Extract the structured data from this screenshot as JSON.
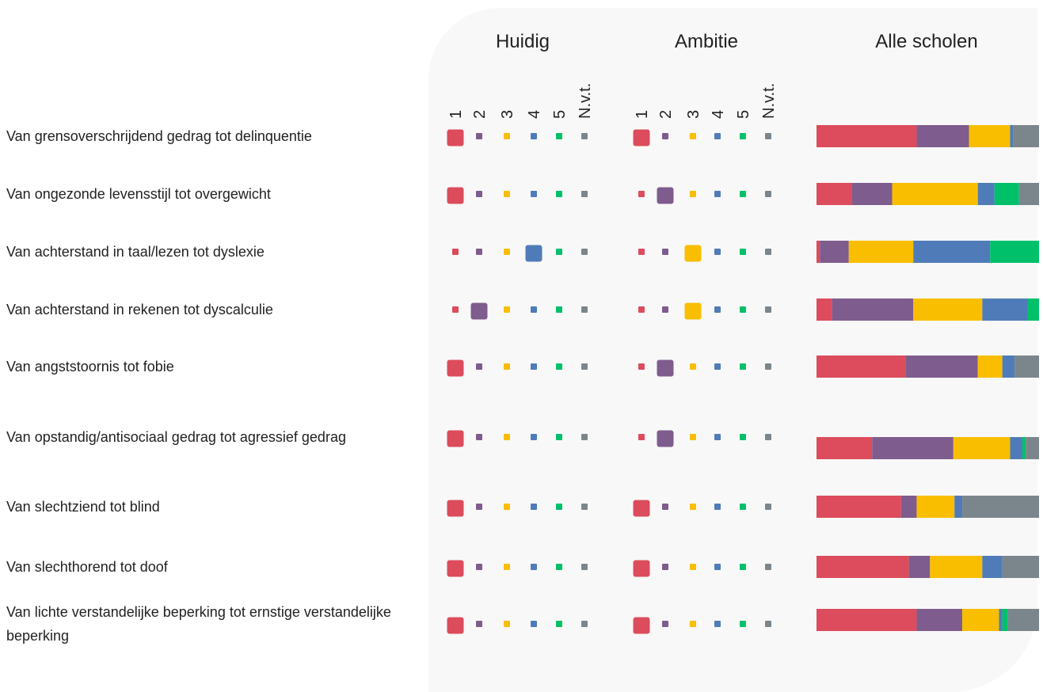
{
  "columns": {
    "huidig": "Huidig",
    "ambitie": "Ambitie",
    "alle_scholen": "Alle scholen"
  },
  "options": [
    "1",
    "2",
    "3",
    "4",
    "5",
    "N.v.t."
  ],
  "colors": [
    "#dc4c5c",
    "#7e5c8e",
    "#f9be00",
    "#4f7cb8",
    "#00c06a",
    "#7b868c"
  ],
  "rows": [
    {
      "label": "Van grensoverschrijdend gedrag tot delinquentie",
      "huidig": "1",
      "ambitie": "1",
      "alle_scholen": [
        45,
        23.5,
        18.5,
        1.5,
        0,
        11.5
      ]
    },
    {
      "label": "Van ongezonde levensstijl tot overgewicht",
      "huidig": "1",
      "ambitie": "2",
      "alle_scholen": [
        16,
        18,
        38.5,
        7.5,
        11,
        9
      ]
    },
    {
      "label": "Van achterstand in taal/lezen tot dyslexie",
      "huidig": "4",
      "ambitie": "3",
      "alle_scholen": [
        1.5,
        13,
        29,
        34.5,
        22,
        0
      ]
    },
    {
      "label": "Van achterstand in rekenen tot dyscalculie",
      "huidig": "2",
      "ambitie": "3",
      "alle_scholen": [
        7,
        36.5,
        31,
        20.5,
        5,
        0
      ]
    },
    {
      "label": "Van angststoornis tot fobie",
      "huidig": "1",
      "ambitie": "2",
      "alle_scholen": [
        40,
        32.5,
        11,
        5.5,
        0,
        11
      ]
    },
    {
      "label": "Van opstandig/antisociaal gedrag tot agressief gedrag",
      "huidig": "1",
      "ambitie": "2",
      "alle_scholen": [
        25,
        36.5,
        25.5,
        5.5,
        1.5,
        6
      ]
    },
    {
      "label": "Van slechtziend tot blind",
      "huidig": "1",
      "ambitie": "1",
      "alle_scholen": [
        38,
        7,
        17,
        3.5,
        0,
        34.5
      ]
    },
    {
      "label": "Van slechthorend tot doof",
      "huidig": "1",
      "ambitie": "1",
      "alle_scholen": [
        41.5,
        9.5,
        23.5,
        9,
        0,
        16.5
      ]
    },
    {
      "label": "Van lichte verstandelijke beperking tot ernstige verstandelijke beperking",
      "huidig": "1",
      "ambitie": "1",
      "alle_scholen": [
        45,
        20.5,
        16.5,
        1.5,
        2.5,
        14
      ]
    }
  ]
}
